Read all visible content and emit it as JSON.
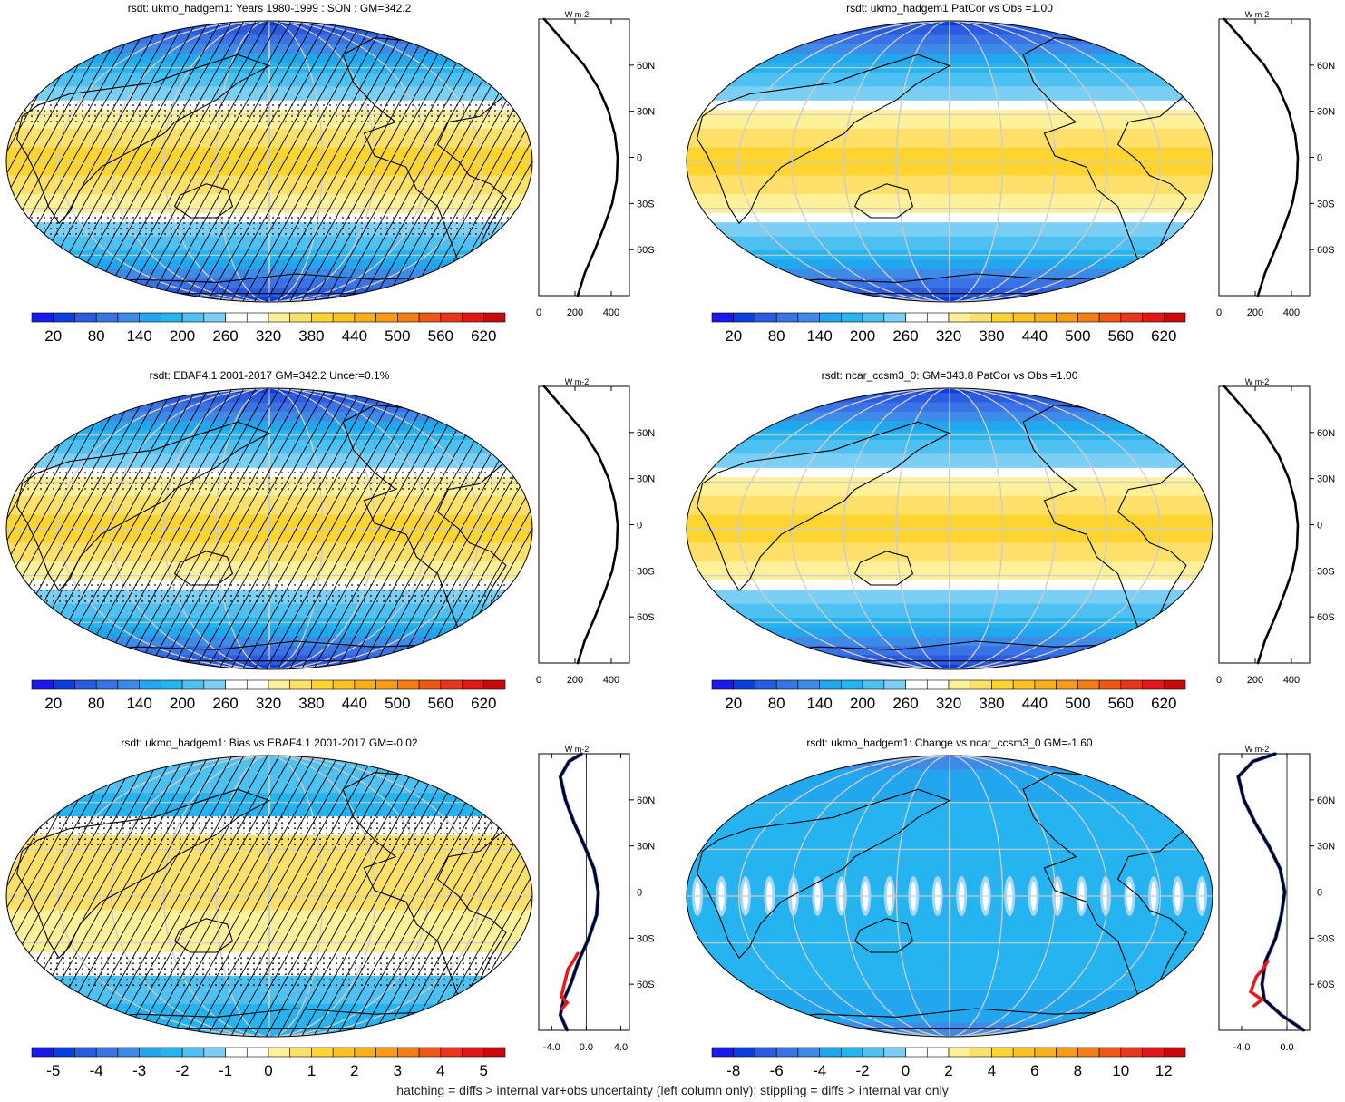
{
  "colors": {
    "palette": [
      "#1a1aee",
      "#0a3ee0",
      "#2a5be0",
      "#3a73e6",
      "#3d8be6",
      "#22a6ee",
      "#26b4f0",
      "#4fc0f2",
      "#7ccff4",
      "#ffffff",
      "#ffffff",
      "#fff09a",
      "#fee06a",
      "#fdd430",
      "#fcc222",
      "#f9ae1a",
      "#f79a16",
      "#f47e14",
      "#ee5814",
      "#e8361a",
      "#e21818",
      "#c80a0a"
    ],
    "land": "#000000",
    "grid": "#cccccc",
    "profile_line": "#000000",
    "profile_obs": "#e81818",
    "profile_alt": "#1a3fe0"
  },
  "footer": "hatching = diffs > internal var+obs uncertainty (left column only); stippling = diffs > internal var only",
  "chart_data": [
    {
      "type": "heatmap",
      "title": "rsdt: ukmo_hadgem1: Years 1980-1999 : SON : GM=342.2",
      "colorbar_labels": [
        "20",
        "80",
        "140",
        "200",
        "260",
        "320",
        "380",
        "440",
        "500",
        "560",
        "620"
      ],
      "field": "absolute",
      "hatching": true,
      "stippling": true,
      "profile": {
        "unit": "W m-2",
        "y_ticks": [
          "60N",
          "30N",
          "0",
          "30S",
          "60S"
        ],
        "x_ticks": [
          "0",
          "200",
          "400"
        ],
        "xlim": [
          0,
          500
        ],
        "ylim": [
          -90,
          90
        ],
        "series": [
          {
            "name": "model",
            "lat": [
              -90,
              -75,
              -60,
              -45,
              -30,
              -15,
              0,
              15,
              30,
              45,
              60,
              75,
              90
            ],
            "values": [
              215,
              255,
              310,
              360,
              405,
              430,
              435,
              420,
              385,
              330,
              250,
              140,
              30
            ]
          }
        ]
      }
    },
    {
      "type": "heatmap",
      "title": "rsdt: ukmo_hadgem1 PatCor vs Obs =1.00",
      "colorbar_labels": [
        "20",
        "80",
        "140",
        "200",
        "260",
        "320",
        "380",
        "440",
        "500",
        "560",
        "620"
      ],
      "field": "absolute",
      "hatching": false,
      "stippling": false,
      "profile": {
        "unit": "W m-2",
        "y_ticks": [
          "60N",
          "30N",
          "0",
          "30S",
          "60S"
        ],
        "x_ticks": [
          "0",
          "200",
          "400"
        ],
        "xlim": [
          0,
          500
        ],
        "ylim": [
          -90,
          90
        ],
        "series": [
          {
            "name": "model",
            "lat": [
              -90,
              -75,
              -60,
              -45,
              -30,
              -15,
              0,
              15,
              30,
              45,
              60,
              75,
              90
            ],
            "values": [
              215,
              255,
              310,
              360,
              405,
              430,
              435,
              420,
              385,
              330,
              250,
              140,
              30
            ]
          }
        ]
      }
    },
    {
      "type": "heatmap",
      "title": "rsdt: EBAF4.1 2001-2017 GM=342.2 Uncer=0.1%",
      "colorbar_labels": [
        "20",
        "80",
        "140",
        "200",
        "260",
        "320",
        "380",
        "440",
        "500",
        "560",
        "620"
      ],
      "field": "absolute",
      "hatching": true,
      "stippling": true,
      "profile": {
        "unit": "W m-2",
        "y_ticks": [
          "60N",
          "30N",
          "0",
          "30S",
          "60S"
        ],
        "x_ticks": [
          "0",
          "200",
          "400"
        ],
        "xlim": [
          0,
          500
        ],
        "ylim": [
          -90,
          90
        ],
        "series": [
          {
            "name": "obs",
            "lat": [
              -90,
              -75,
              -60,
              -45,
              -30,
              -15,
              0,
              15,
              30,
              45,
              60,
              75,
              90
            ],
            "values": [
              215,
              255,
              310,
              360,
              405,
              430,
              435,
              420,
              385,
              330,
              250,
              140,
              30
            ]
          }
        ]
      }
    },
    {
      "type": "heatmap",
      "title": "rsdt: ncar_ccsm3_0: GM=343.8 PatCor vs Obs =1.00",
      "colorbar_labels": [
        "20",
        "80",
        "140",
        "200",
        "260",
        "320",
        "380",
        "440",
        "500",
        "560",
        "620"
      ],
      "field": "absolute",
      "hatching": false,
      "stippling": false,
      "profile": {
        "unit": "W m-2",
        "y_ticks": [
          "60N",
          "30N",
          "0",
          "30S",
          "60S"
        ],
        "x_ticks": [
          "0",
          "200",
          "400"
        ],
        "xlim": [
          0,
          500
        ],
        "ylim": [
          -90,
          90
        ],
        "series": [
          {
            "name": "model",
            "lat": [
              -90,
              -75,
              -60,
              -45,
              -30,
              -15,
              0,
              15,
              30,
              45,
              60,
              75,
              90
            ],
            "values": [
              215,
              255,
              310,
              360,
              405,
              430,
              435,
              420,
              385,
              330,
              250,
              140,
              30
            ]
          }
        ]
      }
    },
    {
      "type": "heatmap",
      "title": "rsdt: ukmo_hadgem1: Bias vs EBAF4.1 2001-2017  GM=-0.02",
      "colorbar_labels": [
        "-5",
        "-4",
        "-3",
        "-2",
        "-1",
        "0",
        "1",
        "2",
        "3",
        "4",
        "5"
      ],
      "field": "bias",
      "hatching": true,
      "stippling": true,
      "profile": {
        "unit": "W m-2",
        "y_ticks": [
          "60N",
          "30N",
          "0",
          "30S",
          "60S"
        ],
        "x_ticks": [
          "-4.0",
          "0.0",
          "4.0"
        ],
        "xlim": [
          -5.5,
          5
        ],
        "ylim": [
          -90,
          90
        ],
        "series": [
          {
            "name": "bias",
            "lat": [
              -90,
              -80,
              -70,
              -60,
              -45,
              -30,
              -15,
              0,
              15,
              30,
              45,
              60,
              75,
              85,
              90
            ],
            "values": [
              -2.2,
              -3.0,
              -2.6,
              -1.8,
              -0.9,
              0.3,
              1.2,
              1.4,
              0.9,
              -0.2,
              -1.4,
              -2.4,
              -3.0,
              -2.0,
              -0.5
            ]
          },
          {
            "name": "obs-unc",
            "lat": [
              -76,
              -72,
              -68,
              -50,
              -45,
              -40
            ],
            "values": [
              -2.8,
              -2.2,
              -2.9,
              -2.1,
              -1.5,
              -1.0
            ]
          }
        ]
      }
    },
    {
      "type": "heatmap",
      "title": "rsdt: ukmo_hadgem1: Change vs ncar_ccsm3_0 GM=-1.60",
      "colorbar_labels": [
        "-8",
        "-6",
        "-4",
        "-2",
        "0",
        "2",
        "4",
        "6",
        "8",
        "10",
        "12"
      ],
      "field": "change",
      "hatching": false,
      "stippling": false,
      "profile": {
        "unit": "W m-2",
        "y_ticks": [
          "60N",
          "30N",
          "0",
          "30S",
          "60S"
        ],
        "x_ticks": [
          "-4.0",
          "0.0"
        ],
        "xlim": [
          -6,
          2
        ],
        "ylim": [
          -90,
          90
        ],
        "series": [
          {
            "name": "change",
            "lat": [
              -90,
              -80,
              -70,
              -60,
              -45,
              -30,
              -15,
              0,
              15,
              30,
              45,
              60,
              75,
              85,
              90
            ],
            "values": [
              1.5,
              -0.5,
              -2.0,
              -2.2,
              -1.9,
              -1.0,
              -0.5,
              -0.2,
              -0.6,
              -1.6,
              -2.8,
              -3.8,
              -4.3,
              -3.0,
              -1.0
            ]
          },
          {
            "name": "obs",
            "lat": [
              -74,
              -70,
              -65,
              -55,
              -50,
              -45
            ],
            "values": [
              -2.9,
              -2.2,
              -3.2,
              -2.7,
              -2.1,
              -1.7
            ]
          }
        ]
      }
    }
  ]
}
